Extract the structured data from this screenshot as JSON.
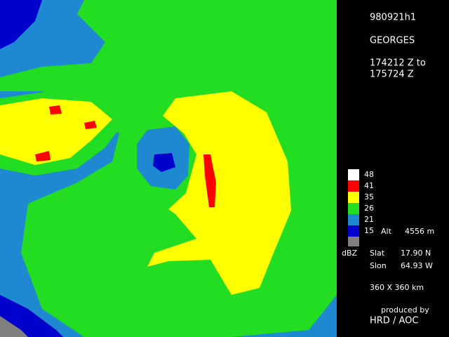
{
  "header": {
    "id": "980921h1",
    "storm": "GEORGES",
    "time_start": "174212 Z to",
    "time_end": "175724 Z"
  },
  "legend": {
    "unit": "dBZ",
    "levels": [
      {
        "value": 48,
        "color": "#ffffff"
      },
      {
        "value": 41,
        "color": "#ff0000"
      },
      {
        "value": 35,
        "color": "#ffff00"
      },
      {
        "value": 26,
        "color": "#22dd22"
      },
      {
        "value": 21,
        "color": "#1e88d0"
      },
      {
        "value": 15,
        "color": "#0000cc"
      }
    ]
  },
  "altitude": {
    "label": "Alt",
    "value": "4556 m"
  },
  "position": {
    "lat_label": "Slat",
    "lat": "17.90 N",
    "lon_label": "Slon",
    "lon": "64.93 W"
  },
  "domain": "360 X 360 km",
  "credit": {
    "line1": "produced by",
    "line2": "HRD / AOC"
  }
}
